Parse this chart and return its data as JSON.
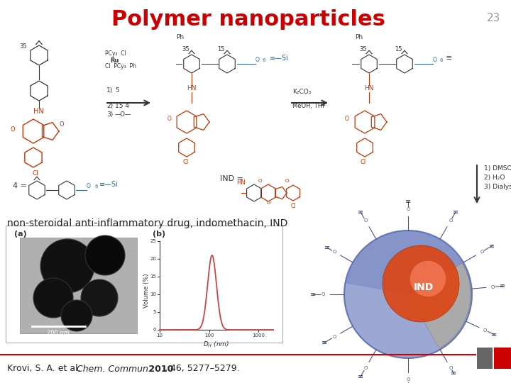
{
  "title": "Polymer nanoparticles",
  "title_color": "#cc0000",
  "title_fontsize": 22,
  "slide_number": "23",
  "slide_number_color": "#999999",
  "caption_text": "non-steroidal anti-inflammatory drug, indomethacin, IND",
  "caption_fontsize": 10,
  "caption_color": "#222222",
  "citation_normal": "Krovi, S. A. et al. ",
  "citation_italic": "Chem. Commun.",
  "citation_bold": " 2010",
  "citation_rest": ", 46, 5277–5279.",
  "citation_fontsize": 9,
  "citation_color": "#222222",
  "bg_color": "#ffffff",
  "footer_line_color": "#cc0000",
  "footer_box1_color": "#666666",
  "footer_box2_color": "#cc0000",
  "ind_color": "#cc3300",
  "poly_color": "#336699",
  "dark_color": "#333333"
}
